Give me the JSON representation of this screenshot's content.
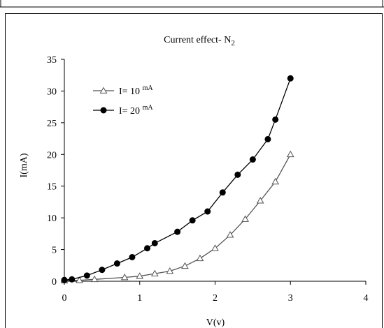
{
  "chart_data": {
    "type": "line",
    "title": "Current effect- N",
    "title_subscript": "2",
    "xlabel": "V(v)",
    "ylabel": "I(mA)",
    "xlim": [
      0,
      4
    ],
    "ylim": [
      0,
      35
    ],
    "x_ticks": [
      0,
      1,
      2,
      3,
      4
    ],
    "y_ticks": [
      0,
      5,
      10,
      15,
      20,
      25,
      30,
      35
    ],
    "grid": false,
    "legend_position": "top-left",
    "series": [
      {
        "name": "I= 10",
        "name_superscript": "mA",
        "marker": "open-triangle",
        "color": "#555555",
        "x": [
          0.0,
          0.2,
          0.4,
          0.8,
          1.0,
          1.2,
          1.4,
          1.6,
          1.8,
          2.0,
          2.2,
          2.4,
          2.6,
          2.8,
          3.0
        ],
        "y": [
          0.1,
          0.15,
          0.3,
          0.6,
          0.8,
          1.2,
          1.6,
          2.4,
          3.6,
          5.2,
          7.3,
          9.8,
          12.7,
          15.7,
          20.0
        ]
      },
      {
        "name": "I= 20",
        "name_superscript": "mA",
        "marker": "filled-circle",
        "color": "#000000",
        "x": [
          0.0,
          0.1,
          0.3,
          0.5,
          0.7,
          0.9,
          1.1,
          1.2,
          1.5,
          1.7,
          1.9,
          2.1,
          2.3,
          2.5,
          2.7,
          2.8,
          3.0
        ],
        "y": [
          0.2,
          0.3,
          0.9,
          1.8,
          2.8,
          3.8,
          5.2,
          6.0,
          7.8,
          9.6,
          11.0,
          14.0,
          16.8,
          19.2,
          22.4,
          25.5,
          32.0
        ]
      }
    ]
  }
}
